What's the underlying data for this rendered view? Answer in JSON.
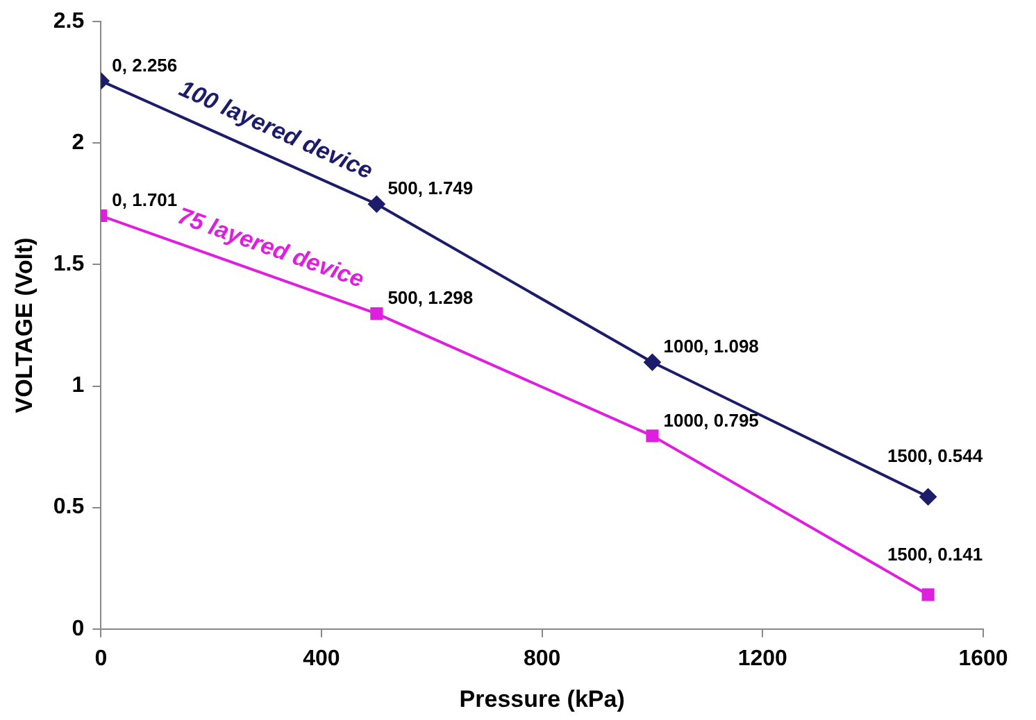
{
  "chart_data": {
    "type": "line",
    "xlabel": "Pressure (kPa)",
    "ylabel": "VOLTAGE (Volt)",
    "xlim": [
      0,
      1600
    ],
    "xticks": [
      0,
      400,
      800,
      1200,
      1600
    ],
    "ylim": [
      0,
      2.5
    ],
    "yticks": [
      0,
      {
        "value": 0.5,
        "label": "0.5"
      },
      1,
      {
        "value": 1.5,
        "label": "1.5"
      },
      2,
      {
        "value": 2.5,
        "label": "2.5"
      }
    ],
    "grid": false,
    "legend": false,
    "line_style": "solid",
    "series": [
      {
        "name": "100 layered device",
        "color": "#1c1c6b",
        "marker": "diamond",
        "x": [
          0,
          500,
          1000,
          1500
        ],
        "values": [
          2.256,
          1.749,
          1.098,
          0.544
        ],
        "value_labels": [
          "0, 2.256",
          "500, 1.749",
          "1000, 1.098",
          "1500, 0.544"
        ]
      },
      {
        "name": "75 layered device",
        "color": "#e01ee0",
        "marker": "square",
        "x": [
          0,
          500,
          1000,
          1500
        ],
        "values": [
          1.701,
          1.298,
          0.795,
          0.141
        ],
        "value_labels": [
          "0, 1.701",
          "500, 1.298",
          "1000, 0.795",
          "1500, 0.141"
        ]
      }
    ]
  }
}
